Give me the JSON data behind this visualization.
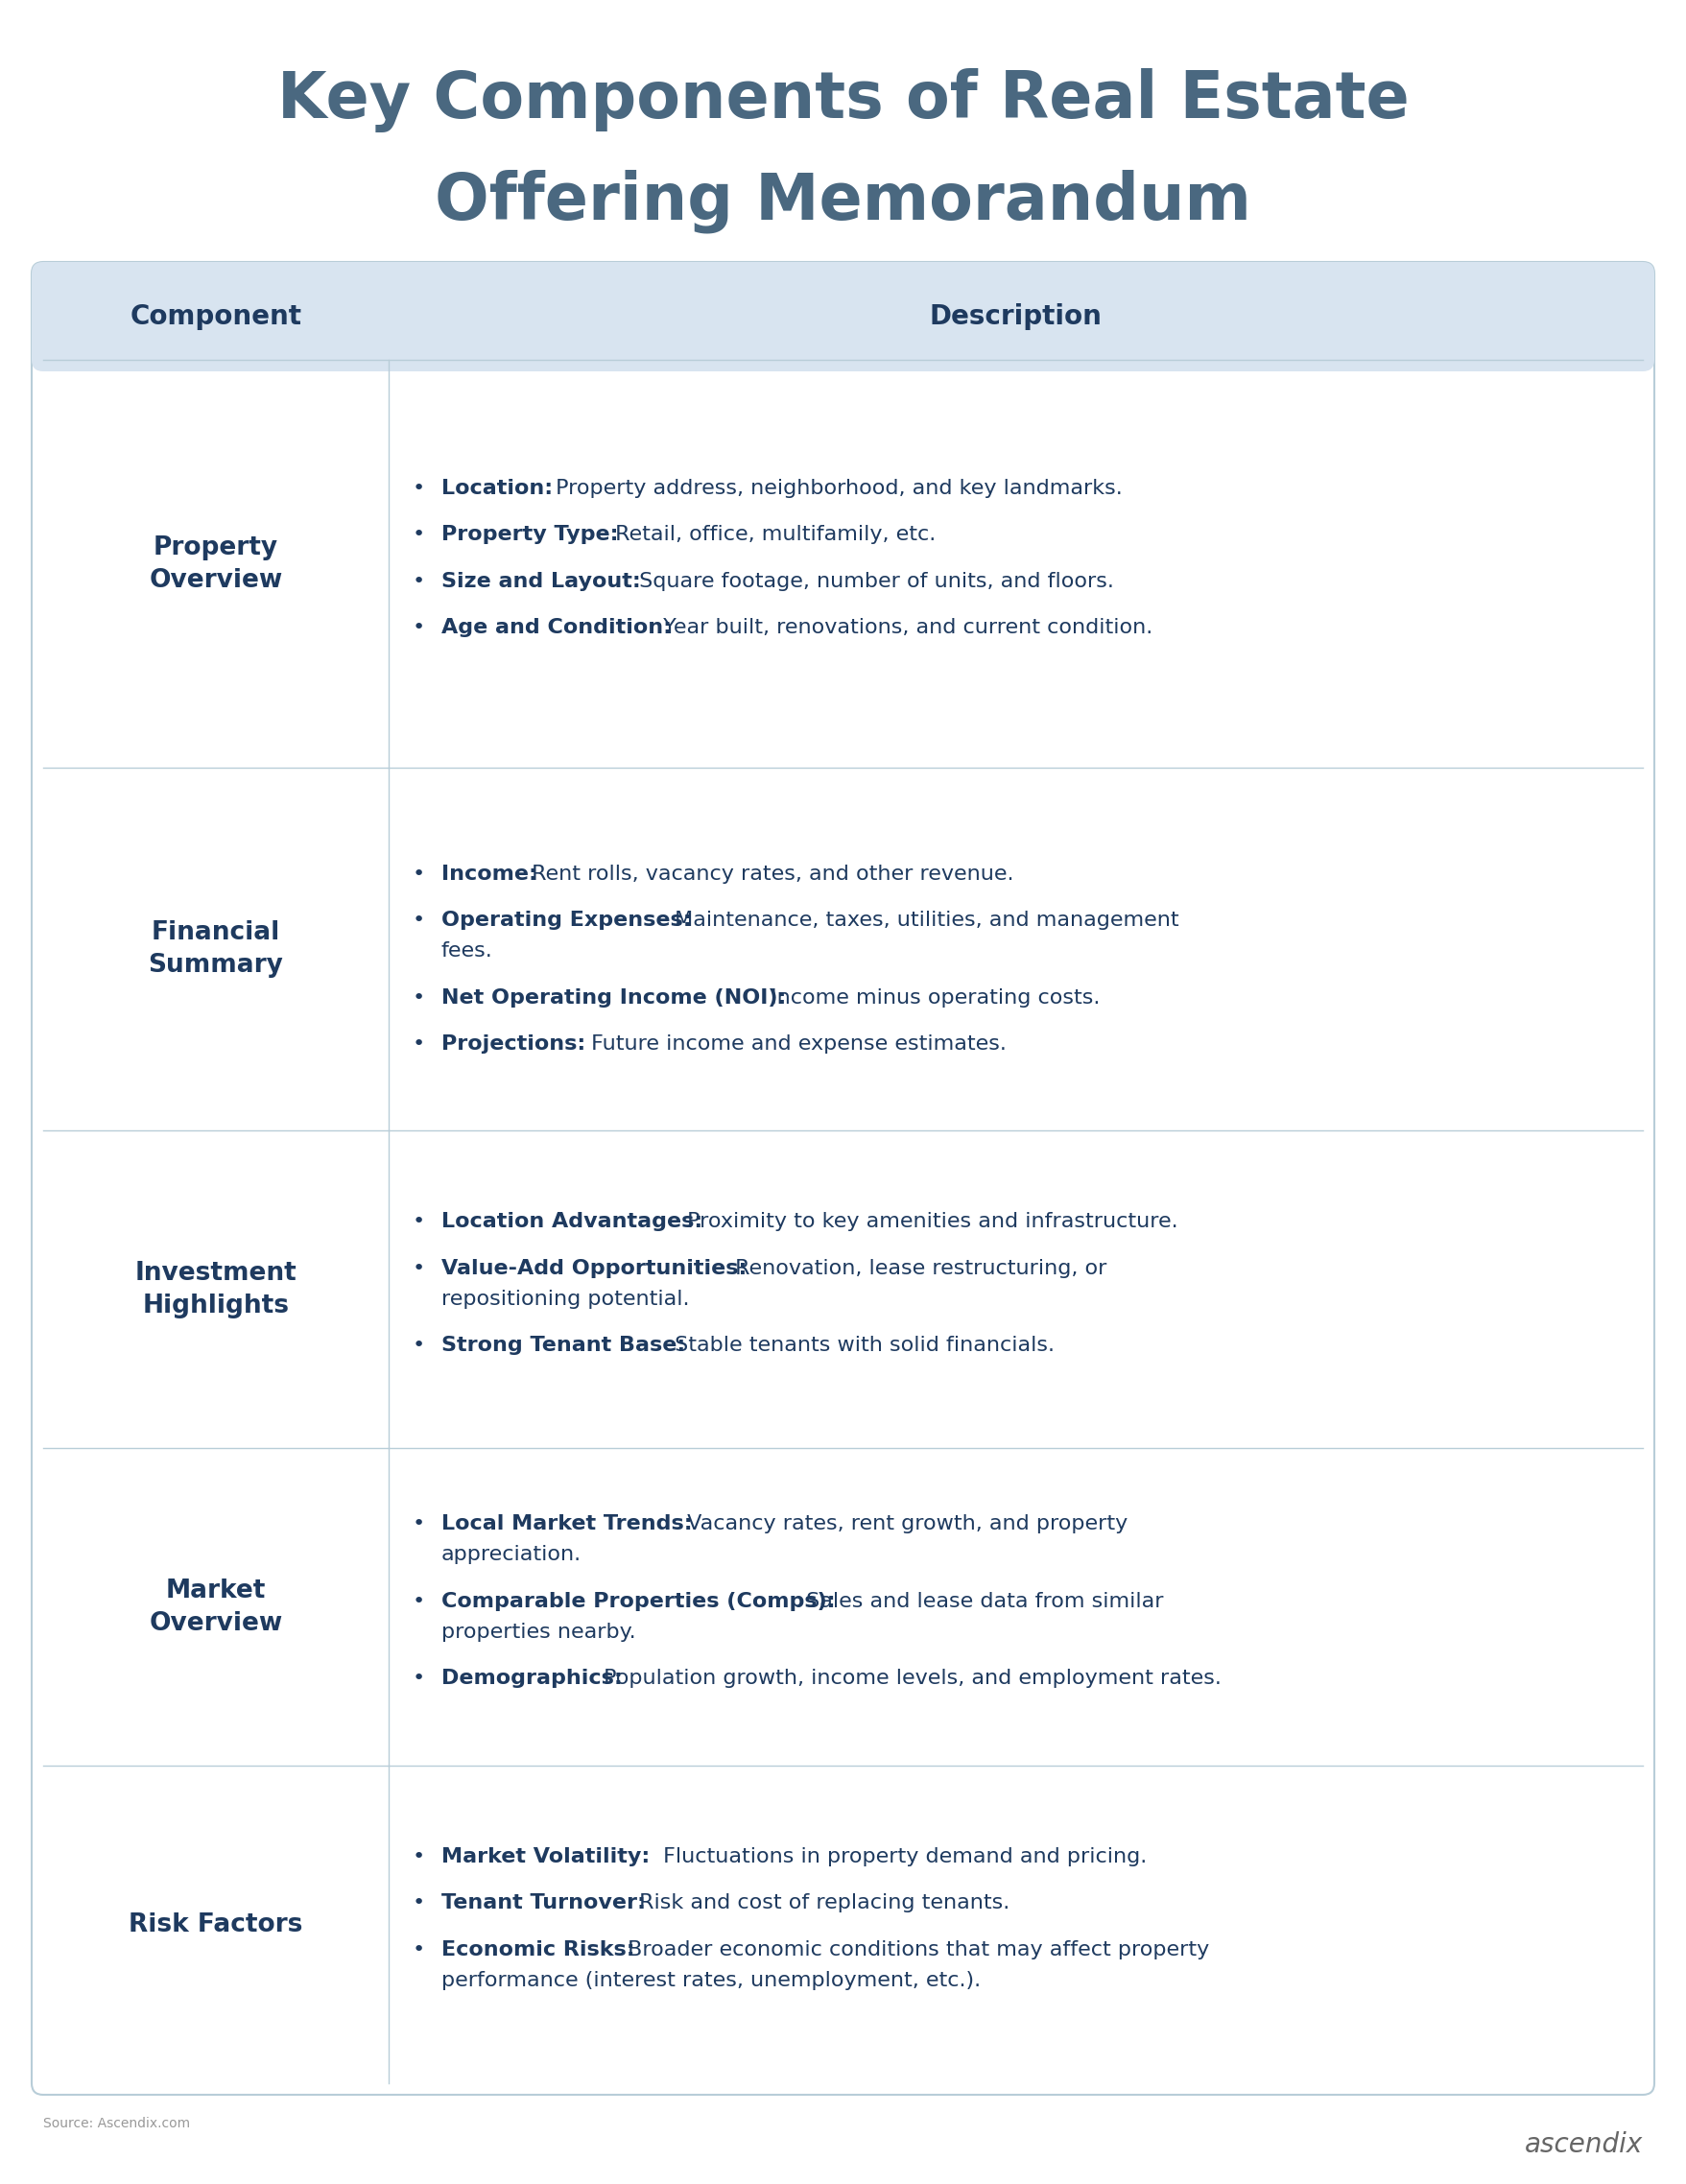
{
  "title_line1": "Key Components of Real Estate",
  "title_line2": "Offering Memorandum",
  "title_color": "#4a6880",
  "title_fontsize": 48,
  "background_color": "#ffffff",
  "table_bg": "#ffffff",
  "header_bg": "#d8e4f0",
  "header_text_color": "#1e3a5f",
  "header_fontsize": 20,
  "row_border_color": "#b8cdd8",
  "component_col_color": "#1e3a5f",
  "component_bold_size": 19,
  "desc_fontsize": 16,
  "source_text": "Source: Ascendix.com",
  "col1_label": "Component",
  "col2_label": "Description",
  "rows": [
    {
      "component": "Property\nOverview",
      "bullets": [
        {
          "bold": "Location:",
          "normal": " Property address, neighborhood, and key landmarks."
        },
        {
          "bold": "Property Type:",
          "normal": " Retail, office, multifamily, etc."
        },
        {
          "bold": "Size and Layout:",
          "normal": " Square footage, number of units, and floors."
        },
        {
          "bold": "Age and Condition:",
          "normal": " Year built, renovations, and current condition."
        }
      ]
    },
    {
      "component": "Financial\nSummary",
      "bullets": [
        {
          "bold": "Income:",
          "normal": " Rent rolls, vacancy rates, and other revenue."
        },
        {
          "bold": "Operating Expenses:",
          "normal": " Maintenance, taxes, utilities, and management fees."
        },
        {
          "bold": "Net Operating Income (NOI):",
          "normal": " Income minus operating costs."
        },
        {
          "bold": "Projections:",
          "normal": " Future income and expense estimates."
        }
      ]
    },
    {
      "component": "Investment\nHighlights",
      "bullets": [
        {
          "bold": "Location Advantages:",
          "normal": " Proximity to key amenities and infrastructure."
        },
        {
          "bold": "Value-Add Opportunities:",
          "normal": " Renovation, lease restructuring, or repositioning potential."
        },
        {
          "bold": "Strong Tenant Base:",
          "normal": " Stable tenants with solid financials."
        }
      ]
    },
    {
      "component": "Market\nOverview",
      "bullets": [
        {
          "bold": "Local Market Trends:",
          "normal": " Vacancy rates, rent growth, and property appreciation."
        },
        {
          "bold": "Comparable Properties (Comps):",
          "normal": " Sales and lease data from similar properties nearby."
        },
        {
          "bold": "Demographics:",
          "normal": " Population growth, income levels, and employment rates."
        }
      ]
    },
    {
      "component": "Risk Factors",
      "bullets": [
        {
          "bold": "Market Volatility:",
          "normal": " Fluctuations in property demand and pricing."
        },
        {
          "bold": "Tenant Turnover:",
          "normal": " Risk and cost of replacing tenants."
        },
        {
          "bold": "Economic Risks:",
          "normal": " Broader economic conditions that may affect property performance (interest rates, unemployment, etc.)."
        }
      ]
    }
  ]
}
